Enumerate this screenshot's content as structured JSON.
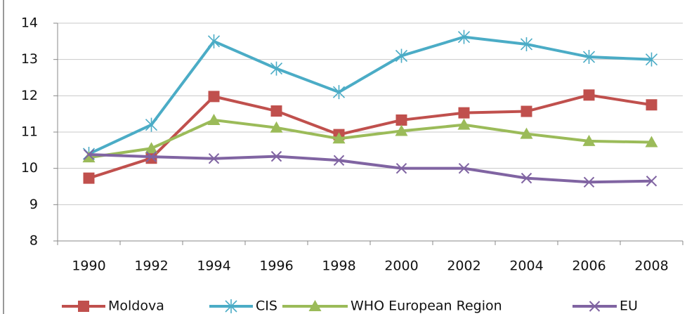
{
  "chart_data": {
    "type": "line",
    "categories": [
      "1990",
      "1992",
      "1994",
      "1996",
      "1998",
      "2000",
      "2002",
      "2004",
      "2006",
      "2008"
    ],
    "series": [
      {
        "name": "Moldova",
        "color": "#c0504d",
        "marker": "square",
        "values": [
          9.73,
          10.28,
          11.98,
          11.58,
          10.93,
          11.33,
          11.53,
          11.57,
          12.02,
          11.75
        ]
      },
      {
        "name": "CIS",
        "color": "#4bacc6",
        "marker": "star",
        "values": [
          10.4,
          11.2,
          13.5,
          12.75,
          12.1,
          13.1,
          13.62,
          13.42,
          13.07,
          13.0
        ]
      },
      {
        "name": "WHO European Region",
        "color": "#9bbb59",
        "marker": "triangle",
        "values": [
          10.3,
          10.55,
          11.33,
          11.12,
          10.82,
          11.03,
          11.2,
          10.95,
          10.75,
          10.72
        ]
      },
      {
        "name": "EU",
        "color": "#8064a2",
        "marker": "x",
        "values": [
          10.38,
          10.32,
          10.27,
          10.33,
          10.22,
          10.0,
          10.0,
          9.73,
          9.62,
          9.65
        ]
      }
    ],
    "ylim": [
      8,
      14
    ],
    "yticks": [
      8,
      9,
      10,
      11,
      12,
      13,
      14
    ],
    "grid": true
  }
}
